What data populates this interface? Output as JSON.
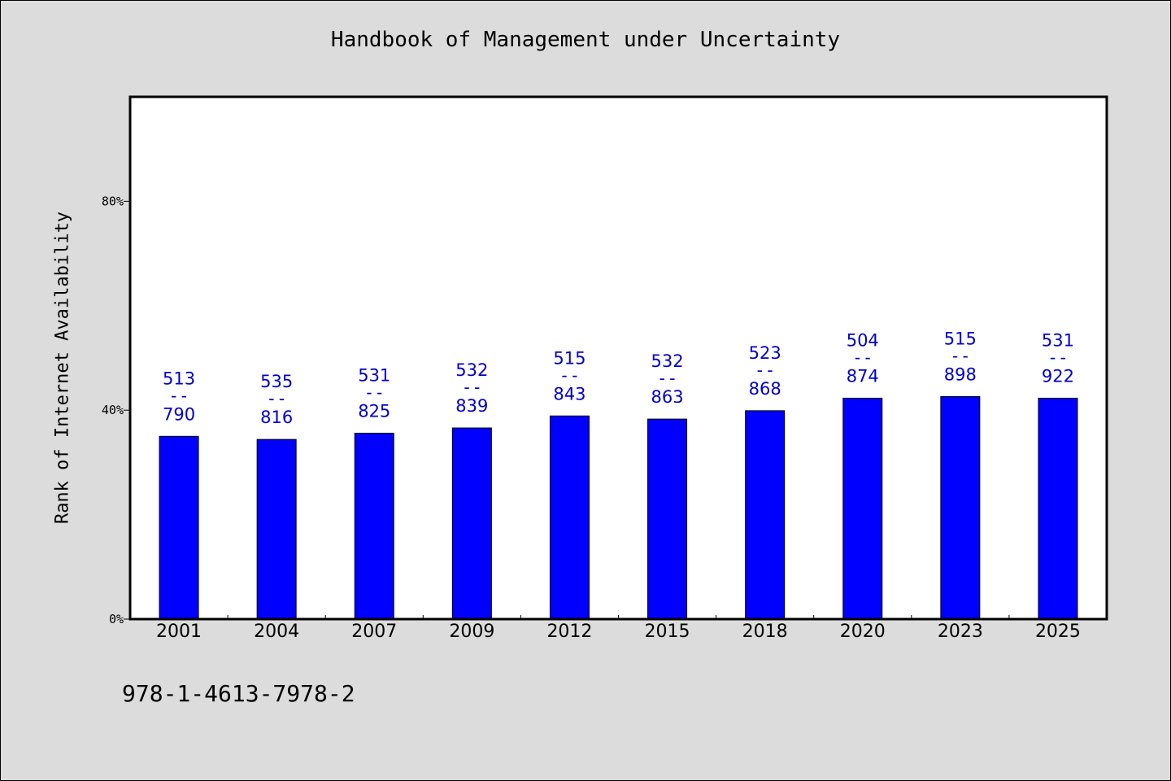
{
  "chart_data": {
    "type": "bar",
    "title": "Handbook of Management under Uncertainty",
    "xlabel": "",
    "ylabel": "Rank of Internet Availability",
    "categories": [
      "2001",
      "2004",
      "2007",
      "2009",
      "2012",
      "2015",
      "2018",
      "2020",
      "2023",
      "2025"
    ],
    "values": [
      35,
      34.4,
      35.6,
      36.6,
      38.9,
      38.3,
      39.9,
      42.3,
      42.6,
      42.3
    ],
    "labels_top": [
      "513",
      "535",
      "531",
      "532",
      "515",
      "532",
      "523",
      "504",
      "515",
      "531"
    ],
    "labels_bottom": [
      "790",
      "816",
      "825",
      "839",
      "843",
      "863",
      "868",
      "874",
      "898",
      "922"
    ],
    "label_separator": "--",
    "y_ticks": [
      "0%",
      "40%",
      "80%"
    ],
    "y_tick_values": [
      0,
      40,
      80
    ],
    "ylim": [
      0,
      100
    ],
    "bar_color": "#0000ff",
    "label_color": "#0000cc",
    "grid": false,
    "legend": "none"
  },
  "footer": {
    "isbn": "978-1-4613-7978-2"
  }
}
